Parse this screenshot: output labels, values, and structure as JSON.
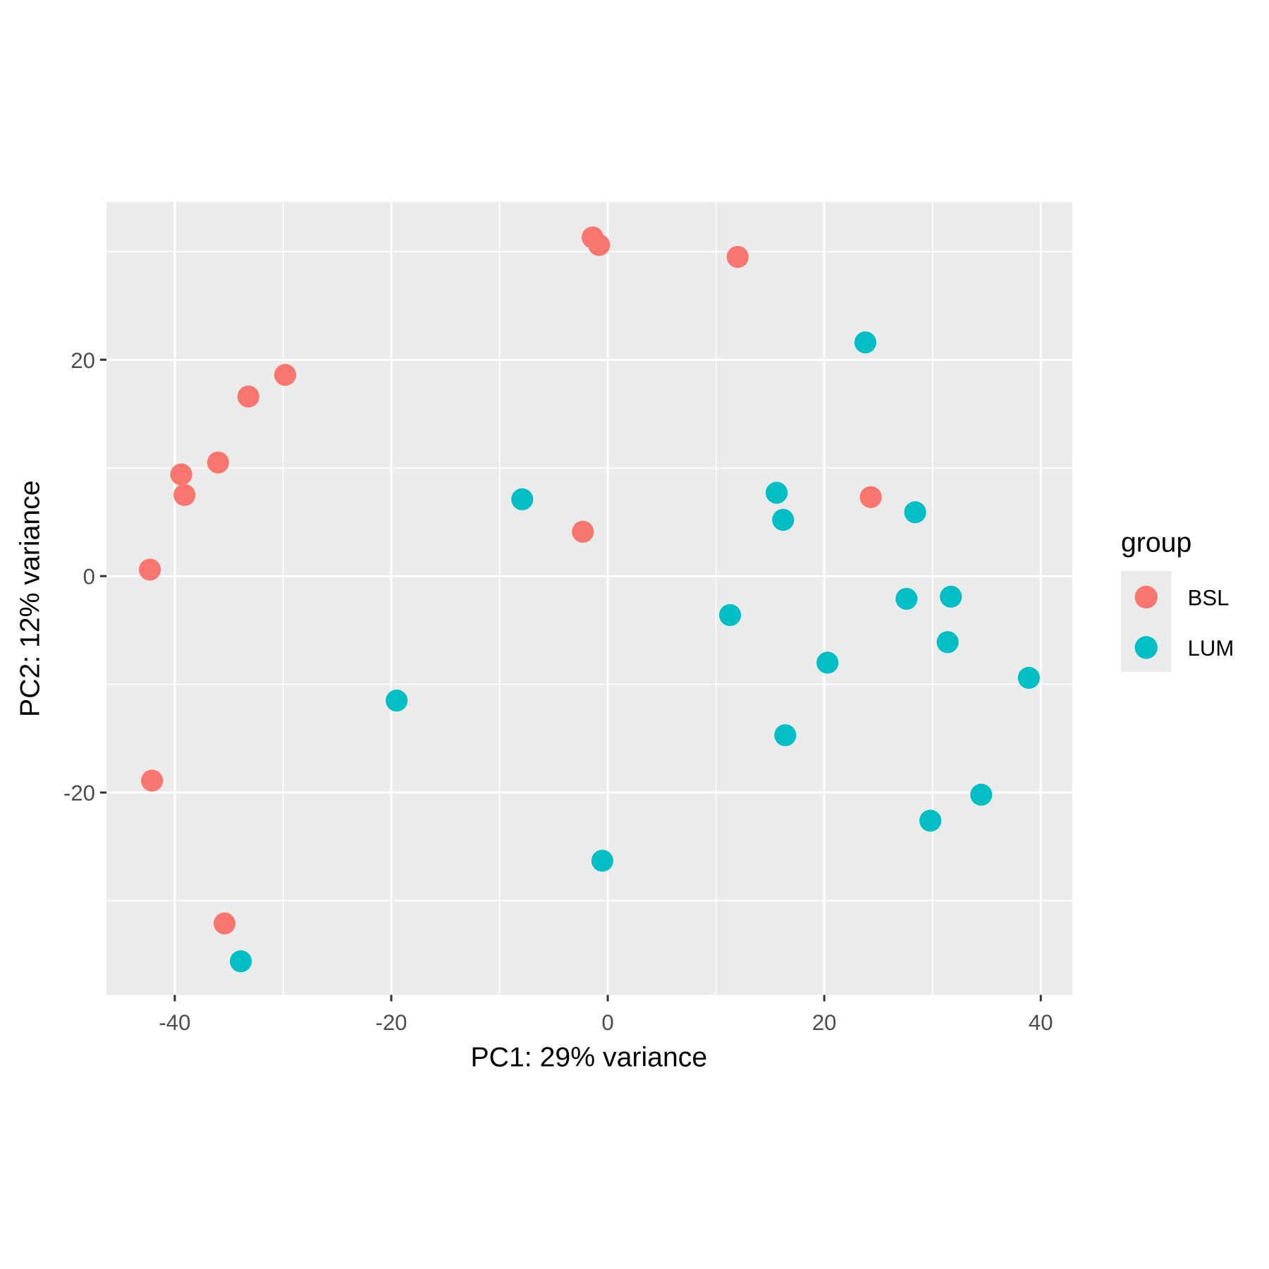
{
  "chart_data": {
    "type": "scatter",
    "title": "",
    "xlabel": "PC1: 29% variance",
    "ylabel": "PC2: 12% variance",
    "xlim": [
      -46.3,
      42.9
    ],
    "ylim": [
      -38.7,
      34.6
    ],
    "xticks": [
      -40,
      -20,
      0,
      20,
      40
    ],
    "yticks": [
      -20,
      0,
      20
    ],
    "xtick_labels": [
      "-40",
      "-20",
      "0",
      "20",
      "40"
    ],
    "ytick_labels": [
      "-20",
      "0",
      "20"
    ],
    "grid": true,
    "legend": {
      "title": "group",
      "placement": "right"
    },
    "series": [
      {
        "name": "BSL",
        "color": "#F8766D",
        "points": [
          [
            -1.4,
            31.3
          ],
          [
            -0.8,
            30.6
          ],
          [
            12.0,
            29.5
          ],
          [
            -29.8,
            18.6
          ],
          [
            -33.2,
            16.6
          ],
          [
            -36.0,
            10.5
          ],
          [
            -39.4,
            9.4
          ],
          [
            -39.1,
            7.5
          ],
          [
            -42.3,
            0.6
          ],
          [
            -2.3,
            4.1
          ],
          [
            24.3,
            7.3
          ],
          [
            -42.1,
            -18.9
          ],
          [
            -35.4,
            -32.1
          ]
        ]
      },
      {
        "name": "LUM",
        "color": "#00BFC4",
        "points": [
          [
            23.8,
            21.6
          ],
          [
            -7.9,
            7.1
          ],
          [
            15.6,
            7.7
          ],
          [
            16.2,
            5.2
          ],
          [
            28.4,
            5.9
          ],
          [
            11.3,
            -3.6
          ],
          [
            27.6,
            -2.1
          ],
          [
            31.7,
            -1.9
          ],
          [
            31.4,
            -6.1
          ],
          [
            20.3,
            -8.0
          ],
          [
            38.9,
            -9.4
          ],
          [
            -19.5,
            -11.5
          ],
          [
            16.4,
            -14.7
          ],
          [
            34.5,
            -20.2
          ],
          [
            29.8,
            -22.6
          ],
          [
            -0.5,
            -26.3
          ],
          [
            -33.9,
            -35.6
          ]
        ]
      }
    ]
  }
}
